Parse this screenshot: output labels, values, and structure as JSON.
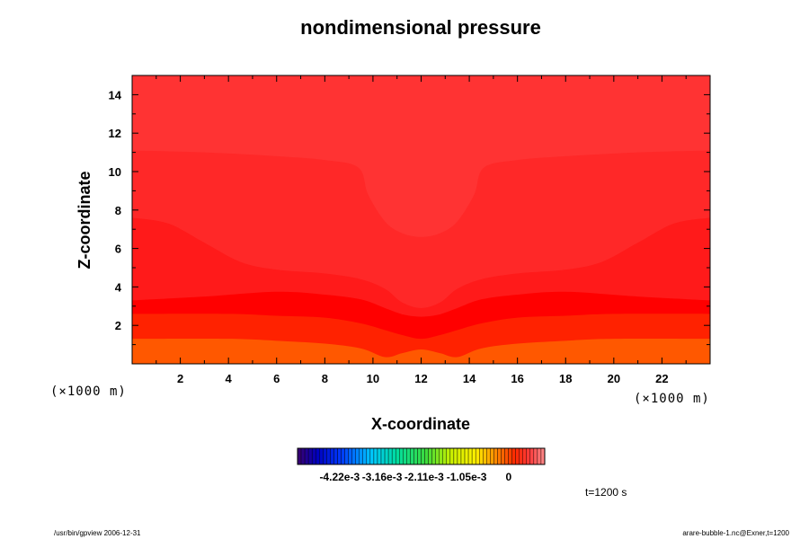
{
  "chart_data": {
    "type": "heatmap",
    "title": "nondimensional pressure",
    "xlabel": "X-coordinate",
    "ylabel": "Z-coordinate",
    "x_unit": "(×1000 m)",
    "y_unit": "(×1000 m)",
    "xlim": [
      0,
      24
    ],
    "ylim": [
      0,
      15
    ],
    "x_ticks": [
      2,
      4,
      6,
      8,
      10,
      12,
      14,
      16,
      18,
      20,
      22
    ],
    "y_ticks": [
      2,
      4,
      6,
      8,
      10,
      12,
      14
    ],
    "colorbar": {
      "tick_labels": [
        "-4.22e-3",
        "-3.16e-3",
        "-2.11e-3",
        "-1.05e-3",
        "0"
      ],
      "tick_values": [
        -0.00422,
        -0.00316,
        -0.00211,
        -0.00105,
        0
      ],
      "range": [
        -0.00527,
        0.0009
      ]
    },
    "contour_levels_z_at_edge": [
      1.3,
      2.6,
      3.3,
      7.6,
      11.1
    ],
    "contour_colors": [
      "#ff5800",
      "#ff2200",
      "#ff0000",
      "#ff1a1a",
      "#ff2828",
      "#ff3333"
    ],
    "bubble_center": {
      "x": 12,
      "z": 3.8
    },
    "time_label": "t=1200 s",
    "footer_left": "/usr/bin/gpview 2006-12-31",
    "footer_right": "arare-bubble-1.nc@Exner,t=1200"
  }
}
